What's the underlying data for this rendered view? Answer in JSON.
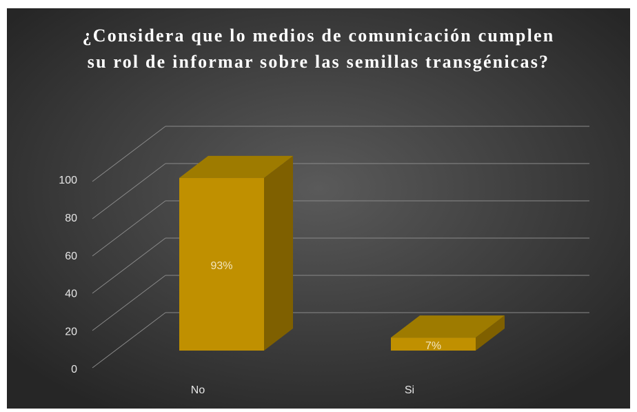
{
  "chart_data": {
    "type": "bar3d",
    "title": "¿Considera que lo medios de comunicación cumplen su rol de informar sobre las semillas transgénicas?",
    "categories": [
      "No",
      "Si"
    ],
    "values": [
      93,
      7
    ],
    "value_labels": [
      "93%",
      "7%"
    ],
    "color": "#c09000",
    "ylim": [
      0,
      100
    ],
    "yticks": [
      0,
      20,
      40,
      60,
      80,
      100
    ],
    "grid": true
  }
}
